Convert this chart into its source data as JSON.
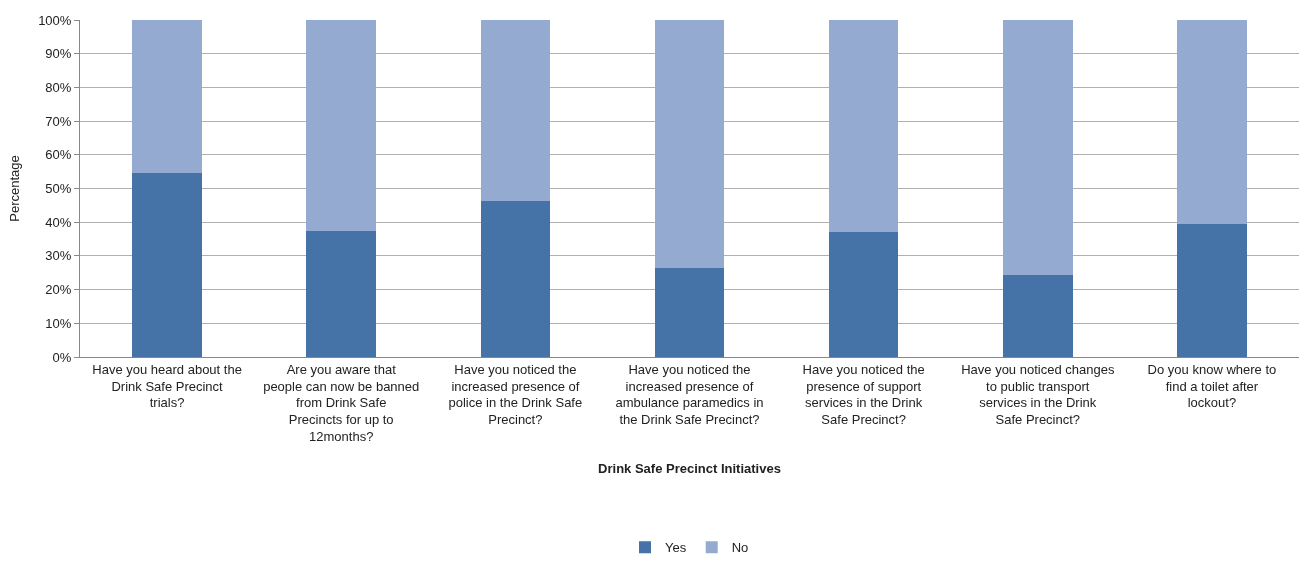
{
  "chart_data": {
    "type": "bar",
    "stacked": true,
    "xlabel": "Drink Safe Precinct Initiatives",
    "ylabel": "Percentage",
    "categories": [
      "Have you heard about the Drink Safe Precinct trials?",
      "Are you aware that people can now be banned from Drink Safe Precincts for up to 12months?",
      "Have you noticed the increased presence of police in the Drink Safe Precinct?",
      "Have you noticed the increased presence of ambulance paramedics in the Drink Safe Precinct?",
      "Have you noticed the presence of support services in the Drink Safe Precinct?",
      "Have you noticed changes to public transport services in the Drink Safe Precinct?",
      "Do you know where to find a toilet after lockout?"
    ],
    "series": [
      {
        "name": "Yes",
        "color": "#4572a7",
        "values": [
          54.5,
          37.5,
          46.2,
          26.3,
          37.2,
          24.4,
          39.5
        ]
      },
      {
        "name": "No",
        "color": "#95aad1",
        "values": [
          45.5,
          62.5,
          53.8,
          73.7,
          62.8,
          75.6,
          60.5
        ]
      }
    ],
    "ylim": [
      0,
      100
    ],
    "yticks": [
      {
        "value": 0,
        "label": "0%"
      },
      {
        "value": 10,
        "label": "10%"
      },
      {
        "value": 20,
        "label": "20%"
      },
      {
        "value": 30,
        "label": "30%"
      },
      {
        "value": 40,
        "label": "40%"
      },
      {
        "value": 50,
        "label": "50%"
      },
      {
        "value": 60,
        "label": "60%"
      },
      {
        "value": 70,
        "label": "70%"
      },
      {
        "value": 80,
        "label": "80%"
      },
      {
        "value": 90,
        "label": "90%"
      },
      {
        "value": 100,
        "label": "100%"
      }
    ],
    "grid": "y",
    "legend": "bottom"
  }
}
